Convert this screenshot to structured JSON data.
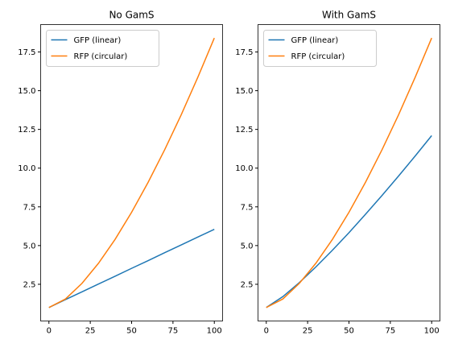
{
  "chart_data": [
    {
      "type": "line",
      "title": "No GamS",
      "x": [
        0,
        10,
        20,
        30,
        40,
        50,
        60,
        70,
        80,
        90,
        100
      ],
      "series": [
        {
          "name": "GFP (linear)",
          "color": "#1f77b4",
          "values": [
            1,
            1.51,
            2.01,
            2.52,
            3.02,
            3.53,
            4.03,
            4.54,
            5.04,
            5.55,
            6.05
          ]
        },
        {
          "name": "RFP (circular)",
          "color": "#ff7f0e",
          "values": [
            1,
            1.55,
            2.56,
            3.86,
            5.4,
            7.15,
            9.09,
            11.19,
            13.45,
            15.86,
            18.4
          ]
        }
      ],
      "xlim": [
        -5,
        105
      ],
      "xticks": [
        0,
        25,
        50,
        75,
        100
      ],
      "ylim": [
        0.13,
        19.27
      ],
      "yticks": [
        {
          "value": 2.5,
          "label": "2.5"
        },
        {
          "value": 5,
          "label": "5.0"
        },
        {
          "value": 7.5,
          "label": "7.5"
        },
        {
          "value": 10,
          "label": "10.0"
        },
        {
          "value": 12.5,
          "label": "12.5"
        },
        {
          "value": 15,
          "label": "15.0"
        },
        {
          "value": 17.5,
          "label": "17.5"
        }
      ],
      "legend": "upper left",
      "grid": false
    },
    {
      "type": "line",
      "title": "With GamS",
      "x": [
        0,
        10,
        20,
        30,
        40,
        50,
        60,
        70,
        80,
        90,
        100
      ],
      "series": [
        {
          "name": "GFP (linear)",
          "color": "#1f77b4",
          "values": [
            1,
            1.7,
            2.61,
            3.62,
            4.7,
            5.83,
            7.02,
            8.24,
            9.49,
            10.78,
            12.1
          ]
        },
        {
          "name": "RFP (circular)",
          "color": "#ff7f0e",
          "values": [
            1,
            1.55,
            2.56,
            3.86,
            5.4,
            7.15,
            9.09,
            11.19,
            13.45,
            15.86,
            18.4
          ]
        }
      ],
      "xlim": [
        -5,
        105
      ],
      "xticks": [
        0,
        25,
        50,
        75,
        100
      ],
      "ylim": [
        0.13,
        19.27
      ],
      "yticks": [
        {
          "value": 2.5,
          "label": "2.5"
        },
        {
          "value": 5,
          "label": "5.0"
        },
        {
          "value": 7.5,
          "label": "7.5"
        },
        {
          "value": 10,
          "label": "10.0"
        },
        {
          "value": 12.5,
          "label": "12.5"
        },
        {
          "value": 15,
          "label": "15.0"
        },
        {
          "value": 17.5,
          "label": "17.5"
        }
      ],
      "legend": "upper left",
      "grid": false
    }
  ]
}
